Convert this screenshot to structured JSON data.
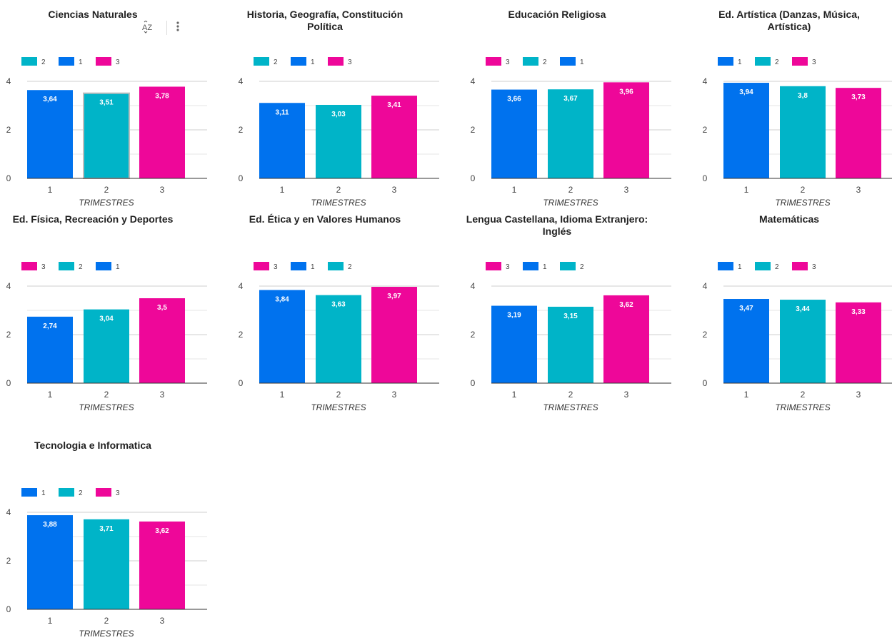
{
  "colors": {
    "1": "#0072EE",
    "2": "#00B4C8",
    "3": "#EE0799"
  },
  "toolbar": {
    "sort_icon": "sort-az-icon",
    "more_icon": "more-vert-icon"
  },
  "chart_data": [
    {
      "type": "bar",
      "title": "Ciencias Naturales",
      "xlabel": "TRIMESTRES",
      "categories": [
        "1",
        "2",
        "3"
      ],
      "values": [
        3.64,
        3.51,
        3.78
      ],
      "value_labels": [
        "3,64",
        "3,51",
        "3,78"
      ],
      "legend": [
        "2",
        "1",
        "3"
      ],
      "ylim": [
        0,
        4
      ],
      "yticks": [
        "0",
        "2",
        "4"
      ],
      "grid": true,
      "legend_position": "top-left"
    },
    {
      "type": "bar",
      "title": "Historia, Geografía, Constitución Política",
      "xlabel": "TRIMESTRES",
      "categories": [
        "1",
        "2",
        "3"
      ],
      "values": [
        3.11,
        3.03,
        3.41
      ],
      "value_labels": [
        "3,11",
        "3,03",
        "3,41"
      ],
      "legend": [
        "2",
        "1",
        "3"
      ],
      "ylim": [
        0,
        4
      ],
      "yticks": [
        "0",
        "2",
        "4"
      ],
      "grid": true,
      "legend_position": "top-left"
    },
    {
      "type": "bar",
      "title": "Educación Religiosa",
      "xlabel": "TRIMESTRES",
      "categories": [
        "1",
        "2",
        "3"
      ],
      "values": [
        3.66,
        3.67,
        3.96
      ],
      "value_labels": [
        "3,66",
        "3,67",
        "3,96"
      ],
      "legend": [
        "3",
        "2",
        "1"
      ],
      "ylim": [
        0,
        4
      ],
      "yticks": [
        "0",
        "2",
        "4"
      ],
      "grid": true,
      "legend_position": "top-left"
    },
    {
      "type": "bar",
      "title": "Ed. Artística (Danzas, Música, Artística)",
      "xlabel": "TRIMESTRES",
      "categories": [
        "1",
        "2",
        "3"
      ],
      "values": [
        3.94,
        3.8,
        3.73
      ],
      "value_labels": [
        "3,94",
        "3,8",
        "3,73"
      ],
      "legend": [
        "1",
        "2",
        "3"
      ],
      "ylim": [
        0,
        4
      ],
      "yticks": [
        "0",
        "2",
        "4"
      ],
      "grid": true,
      "legend_position": "top-left"
    },
    {
      "type": "bar",
      "title": "Ed. Física, Recreación y Deportes",
      "xlabel": "TRIMESTRES",
      "categories": [
        "1",
        "2",
        "3"
      ],
      "values": [
        2.74,
        3.04,
        3.5
      ],
      "value_labels": [
        "2,74",
        "3,04",
        "3,5"
      ],
      "legend": [
        "3",
        "2",
        "1"
      ],
      "ylim": [
        0,
        4
      ],
      "yticks": [
        "0",
        "2",
        "4"
      ],
      "grid": true,
      "legend_position": "top-left"
    },
    {
      "type": "bar",
      "title": "Ed. Ética y en Valores Humanos",
      "xlabel": "TRIMESTRES",
      "categories": [
        "1",
        "2",
        "3"
      ],
      "values": [
        3.84,
        3.63,
        3.97
      ],
      "value_labels": [
        "3,84",
        "3,63",
        "3,97"
      ],
      "legend": [
        "3",
        "1",
        "2"
      ],
      "ylim": [
        0,
        4
      ],
      "yticks": [
        "0",
        "2",
        "4"
      ],
      "grid": true,
      "legend_position": "top-left"
    },
    {
      "type": "bar",
      "title": "Lengua Castellana,  Idioma Extranjero: Inglés",
      "xlabel": "TRIMESTRES",
      "categories": [
        "1",
        "2",
        "3"
      ],
      "values": [
        3.19,
        3.15,
        3.62
      ],
      "value_labels": [
        "3,19",
        "3,15",
        "3,62"
      ],
      "legend": [
        "3",
        "1",
        "2"
      ],
      "ylim": [
        0,
        4
      ],
      "yticks": [
        "0",
        "2",
        "4"
      ],
      "grid": true,
      "legend_position": "top-left"
    },
    {
      "type": "bar",
      "title": "Matemáticas",
      "xlabel": "TRIMESTRES",
      "categories": [
        "1",
        "2",
        "3"
      ],
      "values": [
        3.47,
        3.44,
        3.33
      ],
      "value_labels": [
        "3,47",
        "3,44",
        "3,33"
      ],
      "legend": [
        "1",
        "2",
        "3"
      ],
      "ylim": [
        0,
        4
      ],
      "yticks": [
        "0",
        "2",
        "4"
      ],
      "grid": true,
      "legend_position": "top-left"
    },
    {
      "type": "bar",
      "title": "Tecnologia e Informatica",
      "xlabel": "TRIMESTRES",
      "categories": [
        "1",
        "2",
        "3"
      ],
      "values": [
        3.88,
        3.71,
        3.62
      ],
      "value_labels": [
        "3,88",
        "3,71",
        "3,62"
      ],
      "legend": [
        "1",
        "2",
        "3"
      ],
      "ylim": [
        0,
        4
      ],
      "yticks": [
        "0",
        "2",
        "4"
      ],
      "grid": true,
      "legend_position": "top-left"
    }
  ]
}
